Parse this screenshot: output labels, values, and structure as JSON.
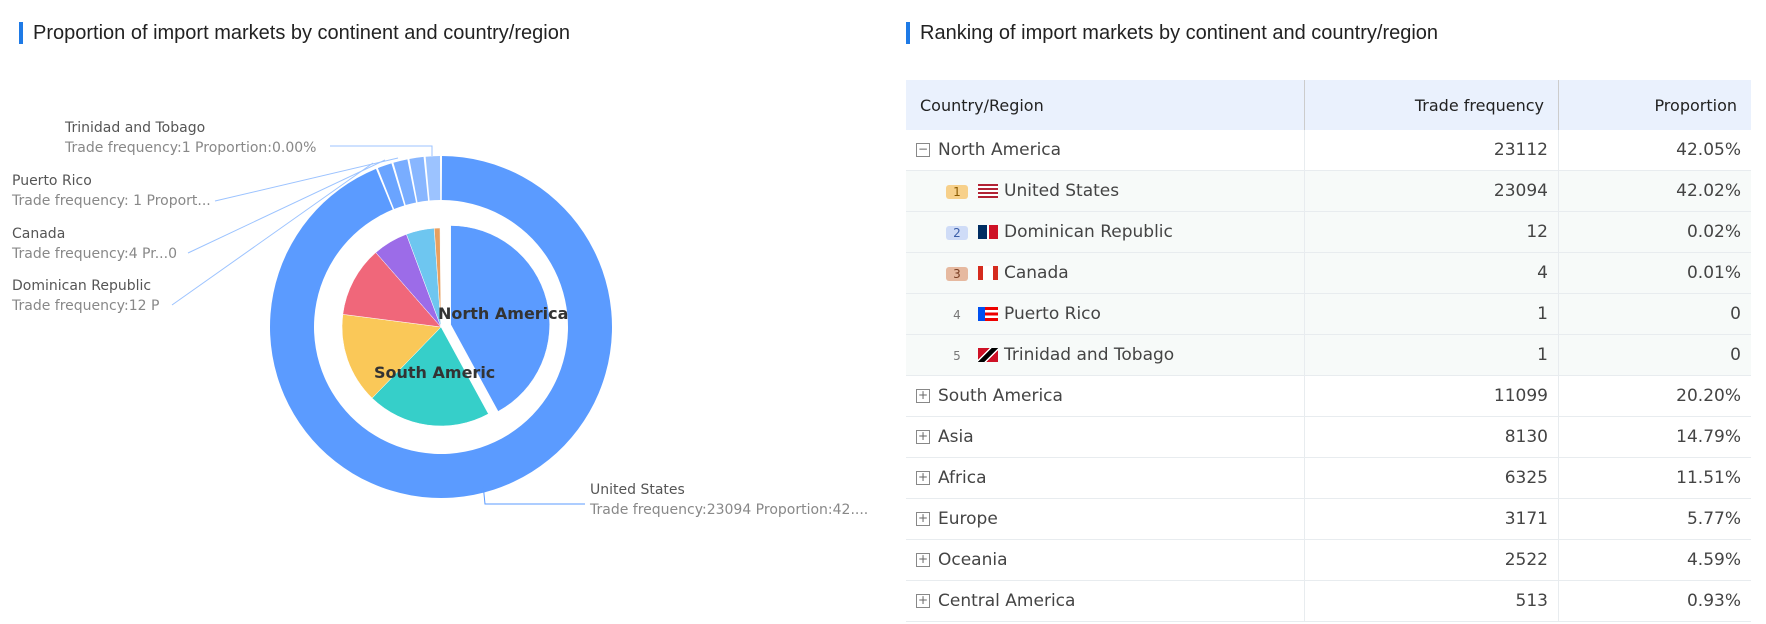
{
  "left_title": "Proportion of import markets by continent and country/region",
  "right_title": "Ranking of import markets by continent and country/region",
  "chart_data": {
    "type": "pie",
    "inner": {
      "categories": [
        "North America",
        "South America",
        "Asia",
        "Africa",
        "Europe",
        "Oceania",
        "Central America"
      ],
      "values": [
        42.05,
        20.2,
        14.79,
        11.51,
        5.77,
        4.59,
        0.93
      ],
      "colors": [
        "#5b9bff",
        "#36cfc9",
        "#fac858",
        "#f0677a",
        "#9c6ce8",
        "#6ec6f0",
        "#e8a060"
      ],
      "visible_labels": [
        "North America",
        "South Americ"
      ]
    },
    "outer": {
      "categories": [
        "United States",
        "Dominican Republic",
        "Canada",
        "Puerto Rico",
        "Trinidad and Tobago"
      ],
      "values": [
        23094,
        12,
        4,
        1,
        1
      ],
      "colors": [
        "#5b9bff",
        "#6aa4ff",
        "#79adff",
        "#88b6ff",
        "#9cc3ff"
      ],
      "labels": [
        {
          "name": "United States",
          "detail": "Trade frequency:23094 Proportion:42...."
        },
        {
          "name": "Dominican Republic",
          "detail": "Trade frequency:12 P"
        },
        {
          "name": "Canada",
          "detail": "Trade frequency:4 Pr...0"
        },
        {
          "name": "Puerto Rico",
          "detail": "Trade frequency: 1 Proport..."
        },
        {
          "name": "Trinidad and Tobago",
          "detail": "Trade frequency:1 Proportion:0.00%"
        }
      ]
    }
  },
  "table": {
    "headers": [
      "Country/Region",
      "Trade frequency",
      "Proportion"
    ],
    "rows": [
      {
        "type": "group",
        "expanded": true,
        "name": "North America",
        "freq": "23112",
        "prop": "42.05%"
      },
      {
        "type": "sub",
        "rank": "1",
        "flag": "us",
        "name": "United States",
        "freq": "23094",
        "prop": "42.02%"
      },
      {
        "type": "sub",
        "rank": "2",
        "flag": "do",
        "name": "Dominican Republic",
        "freq": "12",
        "prop": "0.02%"
      },
      {
        "type": "sub",
        "rank": "3",
        "flag": "ca",
        "name": "Canada",
        "freq": "4",
        "prop": "0.01%"
      },
      {
        "type": "sub",
        "rank": "4",
        "flag": "pr",
        "name": "Puerto Rico",
        "freq": "1",
        "prop": "0"
      },
      {
        "type": "sub",
        "rank": "5",
        "flag": "tt",
        "name": "Trinidad and Tobago",
        "freq": "1",
        "prop": "0"
      },
      {
        "type": "group",
        "expanded": false,
        "name": "South America",
        "freq": "11099",
        "prop": "20.20%"
      },
      {
        "type": "group",
        "expanded": false,
        "name": "Asia",
        "freq": "8130",
        "prop": "14.79%"
      },
      {
        "type": "group",
        "expanded": false,
        "name": "Africa",
        "freq": "6325",
        "prop": "11.51%"
      },
      {
        "type": "group",
        "expanded": false,
        "name": "Europe",
        "freq": "3171",
        "prop": "5.77%"
      },
      {
        "type": "group",
        "expanded": false,
        "name": "Oceania",
        "freq": "2522",
        "prop": "4.59%"
      },
      {
        "type": "group",
        "expanded": false,
        "name": "Central America",
        "freq": "513",
        "prop": "0.93%"
      }
    ]
  }
}
